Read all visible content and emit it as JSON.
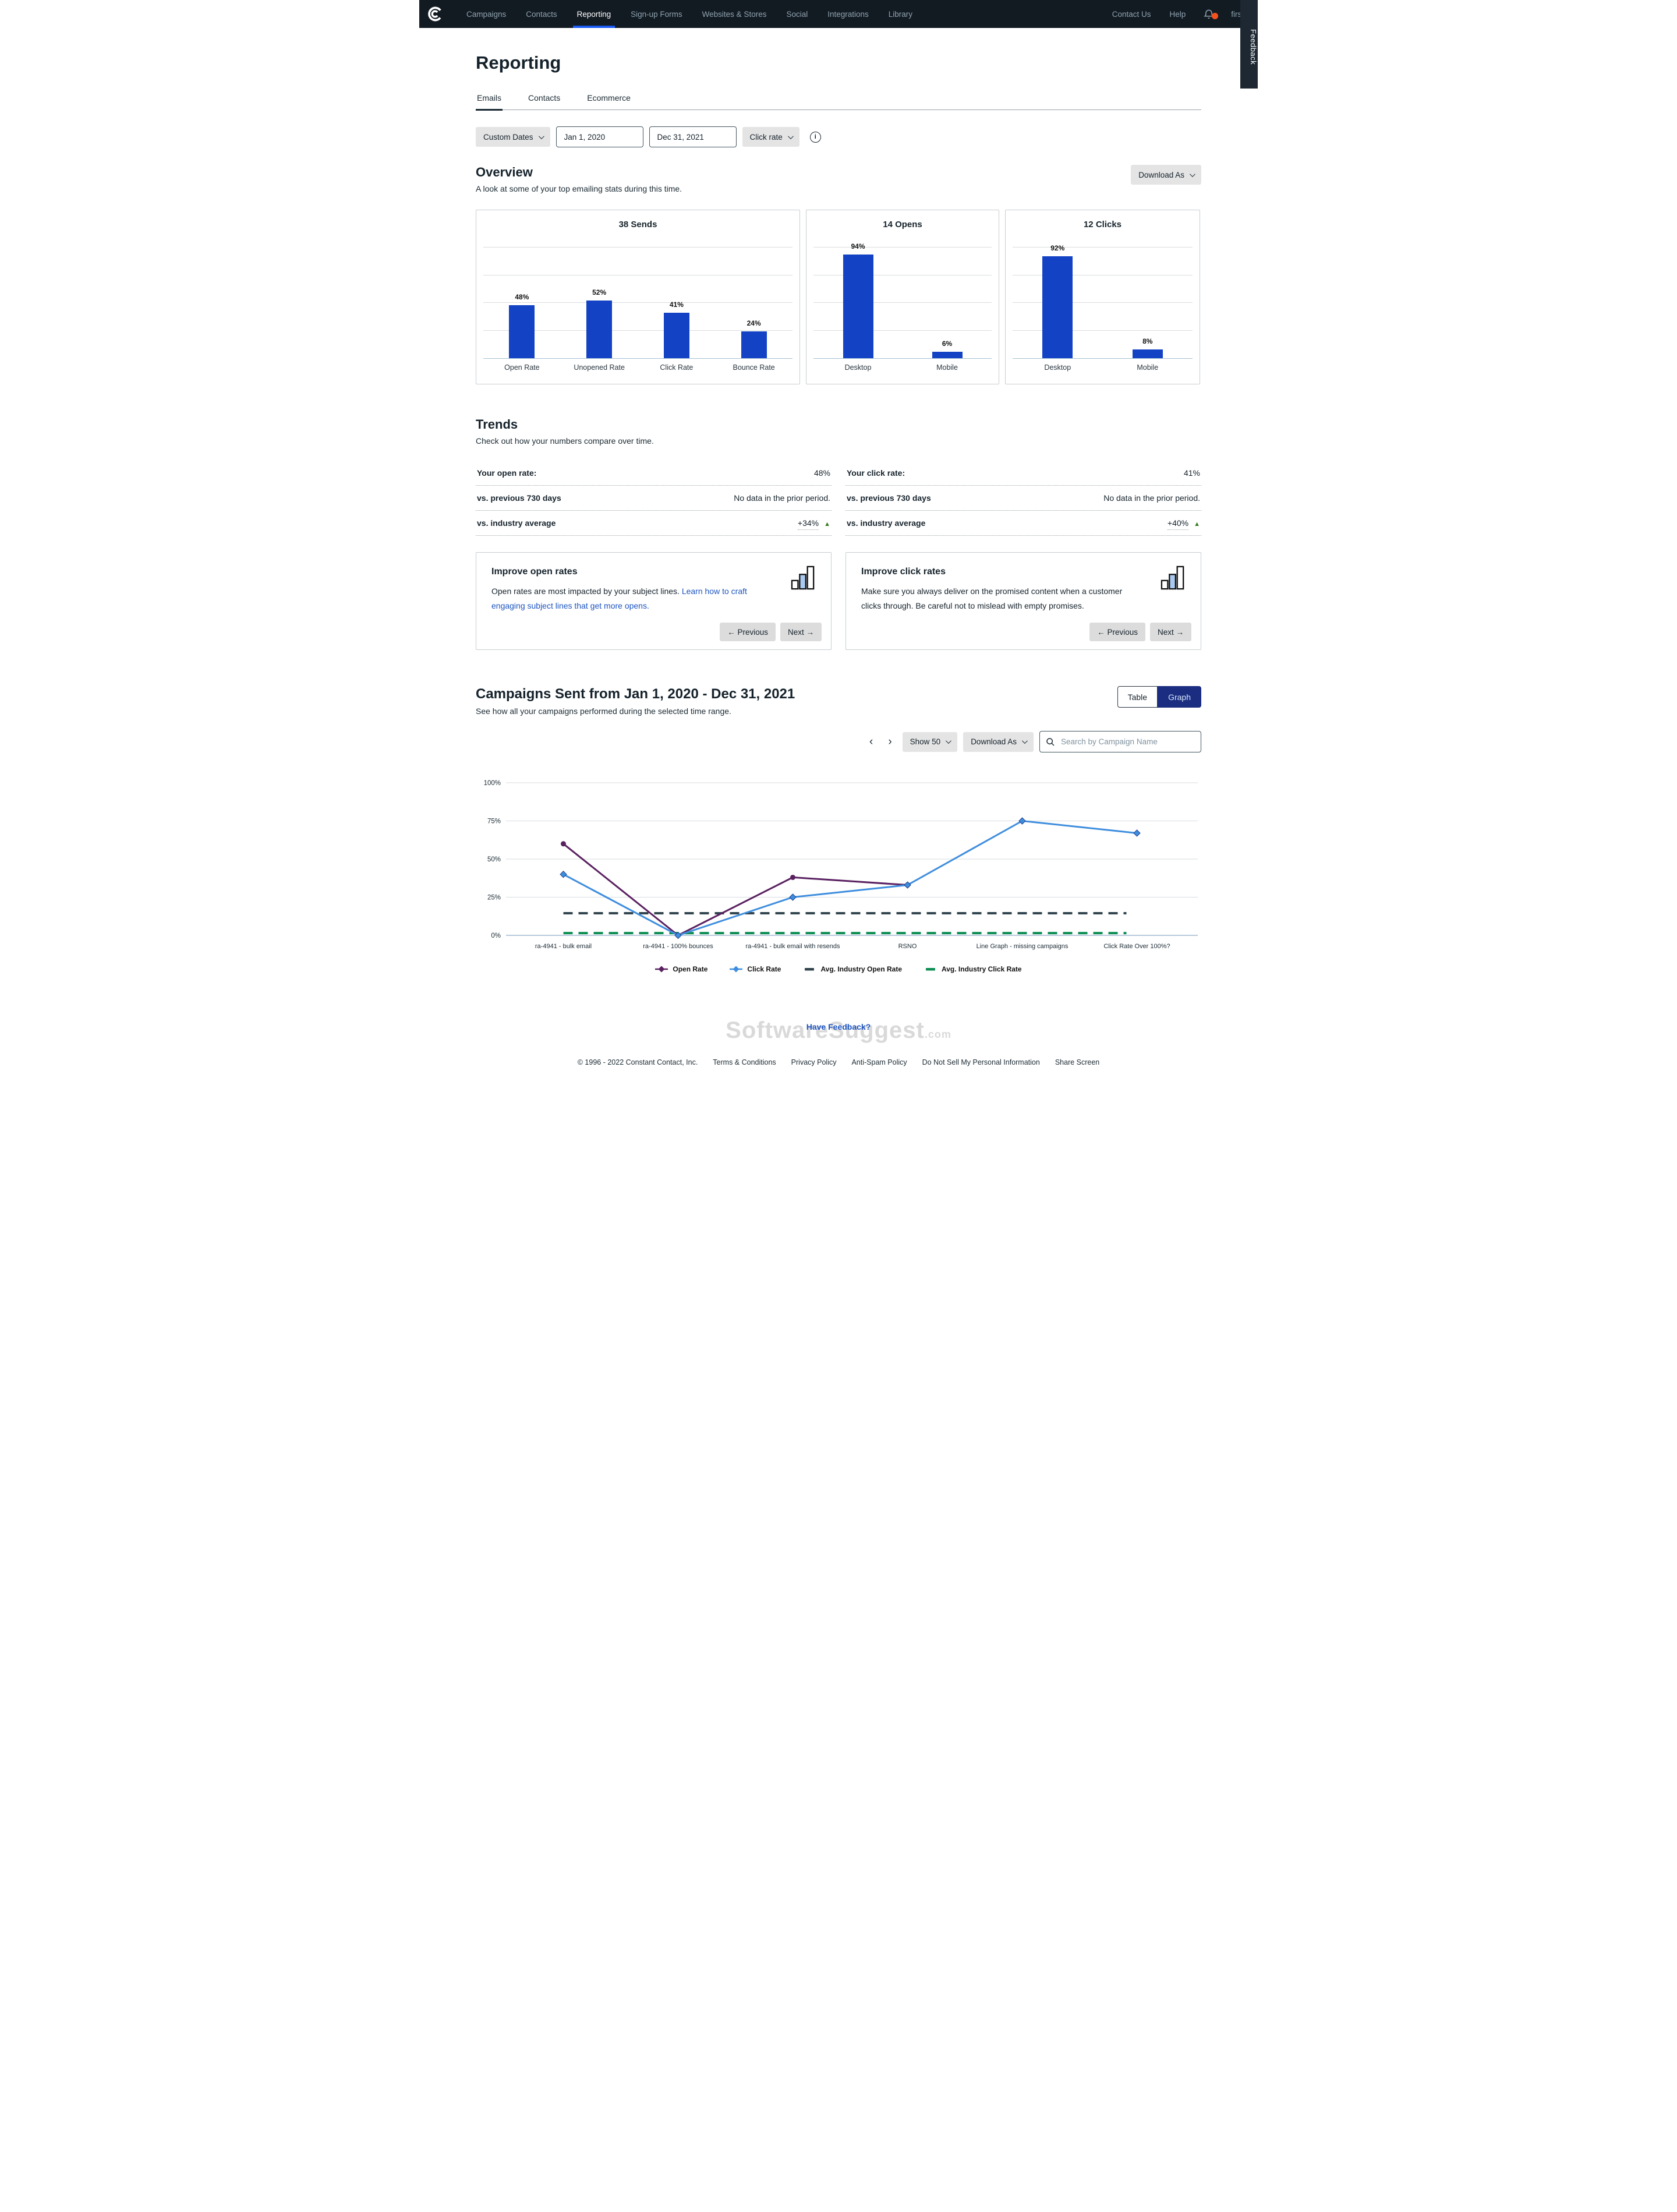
{
  "nav": {
    "items": [
      "Campaigns",
      "Contacts",
      "Reporting",
      "Sign-up Forms",
      "Websites & Stores",
      "Social",
      "Integrations",
      "Library"
    ],
    "active": "Reporting",
    "contact_us": "Contact Us",
    "help": "Help",
    "username": "first",
    "feedback_tab": "Feedback",
    "accent_underline": "#1b5bf5",
    "bg": "#121a22",
    "notification_dot_color": "#f4511e"
  },
  "page": {
    "title": "Reporting",
    "tabs": [
      "Emails",
      "Contacts",
      "Ecommerce"
    ],
    "active_tab": "Emails"
  },
  "filters": {
    "range_label": "Custom Dates",
    "start_date": "Jan 1, 2020",
    "end_date": "Dec 31, 2021",
    "metric_label": "Click rate",
    "info_icon": "i"
  },
  "overview": {
    "title": "Overview",
    "subtitle": "A look at some of your top emailing stats during this time.",
    "download_label": "Download As"
  },
  "chart_data": [
    {
      "type": "bar",
      "title": "38 Sends",
      "categories": [
        "Open Rate",
        "Unopened Rate",
        "Click Rate",
        "Bounce Rate"
      ],
      "values": [
        48,
        52,
        41,
        24
      ],
      "unit": "%",
      "bar_color": "#1342c4",
      "ylim": [
        0,
        100
      ],
      "grid": true
    },
    {
      "type": "bar",
      "title": "14 Opens",
      "categories": [
        "Desktop",
        "Mobile"
      ],
      "values": [
        94,
        6
      ],
      "unit": "%",
      "bar_color": "#1342c4",
      "ylim": [
        0,
        100
      ],
      "grid": true
    },
    {
      "type": "bar",
      "title": "12 Clicks",
      "categories": [
        "Desktop",
        "Mobile"
      ],
      "values": [
        92,
        8
      ],
      "unit": "%",
      "bar_color": "#1342c4",
      "ylim": [
        0,
        100
      ],
      "grid": true
    },
    {
      "type": "line",
      "title": "Campaigns Sent from Jan 1, 2020 - Dec 31, 2021",
      "categories": [
        "ra-4941 - bulk email",
        "ra-4941 - 100% bounces",
        "ra-4941 - bulk email with resends",
        "RSNO",
        "Line Graph - missing campaigns",
        "Click Rate Over 100%?"
      ],
      "yticks": [
        "0%",
        "25%",
        "50%",
        "75%",
        "100%"
      ],
      "ylim": [
        0,
        100
      ],
      "grid": true,
      "legend_position": "bottom",
      "series": [
        {
          "name": "Open Rate",
          "style": "line",
          "marker": "circle",
          "color": "#5a2161",
          "values": [
            60,
            0,
            38,
            33,
            null,
            null
          ]
        },
        {
          "name": "Click Rate",
          "style": "line",
          "marker": "diamond",
          "color": "#3f8ede",
          "values": [
            40,
            0,
            25,
            33,
            75,
            67
          ]
        },
        {
          "name": "Avg. Industry Open Rate",
          "style": "dashed-constant",
          "color": "#32444e",
          "value": 14.5
        },
        {
          "name": "Avg. Industry Click Rate",
          "style": "dashed-constant",
          "color": "#0d8f52",
          "value": 1.5
        }
      ]
    }
  ],
  "trends": {
    "title": "Trends",
    "subtitle": "Check out how your numbers compare over time.",
    "columns": [
      {
        "rows": [
          {
            "label": "Your open rate:",
            "value": "48%",
            "delta_up": false
          },
          {
            "label": "vs. previous 730 days",
            "value": "No data in the prior period.",
            "delta_up": false
          },
          {
            "label": "vs. industry average",
            "value": "+34%",
            "delta_up": true
          }
        ]
      },
      {
        "rows": [
          {
            "label": "Your click rate:",
            "value": "41%",
            "delta_up": false
          },
          {
            "label": "vs. previous 730 days",
            "value": "No data in the prior period.",
            "delta_up": false
          },
          {
            "label": "vs. industry average",
            "value": "+40%",
            "delta_up": true
          }
        ]
      }
    ],
    "delta_icon": "▲",
    "delta_color": "#357a21"
  },
  "improve_cards": [
    {
      "title": "Improve open rates",
      "body": "Open rates are most impacted by your subject lines. ",
      "link": "Learn how to craft engaging subject lines that get more opens.",
      "prev_label": "← Previous",
      "next_label": "Next →"
    },
    {
      "title": "Improve click rates",
      "body": "Make sure you always deliver on the promised content when a customer clicks through. Be careful not to mislead with empty promises.",
      "link": "",
      "prev_label": "← Previous",
      "next_label": "Next →"
    }
  ],
  "campaigns": {
    "title": "Campaigns Sent from Jan 1, 2020 - Dec 31, 2021",
    "subtitle": "See how all your campaigns performed during the selected time range.",
    "toggle": {
      "table_label": "Table",
      "graph_label": "Graph",
      "active": "Graph",
      "active_bg": "#1b2d80"
    },
    "pagination": {
      "prev": "‹",
      "next": "›"
    },
    "show_label": "Show 50",
    "download_label": "Download As",
    "search_placeholder": "Search by Campaign Name"
  },
  "footer": {
    "feedback_link": "Have Feedback?",
    "watermark": {
      "text": "SoftwareSuggest",
      "suffix": ".com"
    },
    "links": [
      "© 1996 - 2022 Constant Contact, Inc.",
      "Terms & Conditions",
      "Privacy Policy",
      "Anti-Spam Policy",
      "Do Not Sell My Personal Information",
      "Share Screen"
    ]
  }
}
